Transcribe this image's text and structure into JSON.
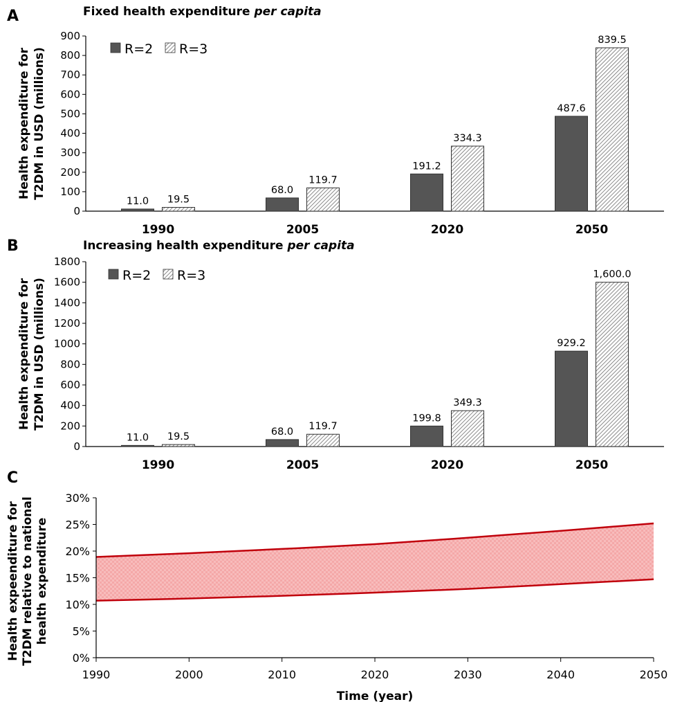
{
  "panels": {
    "A": {
      "letter": "A",
      "title_plain": "Fixed health expenditure ",
      "title_italic": "per capita"
    },
    "B": {
      "letter": "B",
      "title_plain": "Increasing health expenditure ",
      "title_italic": "per capita"
    },
    "C": {
      "letter": "C"
    }
  },
  "colors": {
    "r2_bar": "#555555",
    "r3_bar_hatch": "#6e6e6e",
    "band_fill": "#f7b7b7",
    "band_line": "#c0000b"
  },
  "chart_data": [
    {
      "type": "bar",
      "title": "Fixed health expenditure per capita",
      "ylabel": "Health expenditure for T2DM in USD (millions)",
      "xlabel": "",
      "categories": [
        "1990",
        "2005",
        "2020",
        "2050"
      ],
      "series": [
        {
          "name": "R=2",
          "values": [
            11.0,
            68.0,
            191.2,
            487.6
          ],
          "labels": [
            "11.0",
            "68.0",
            "191.2",
            "487.6"
          ]
        },
        {
          "name": "R=3",
          "values": [
            19.5,
            119.7,
            334.3,
            839.5
          ],
          "labels": [
            "19.5",
            "119.7",
            "334.3",
            "839.5"
          ]
        }
      ],
      "ylim": [
        0,
        900
      ],
      "yticks": [
        0,
        100,
        200,
        300,
        400,
        500,
        600,
        700,
        800,
        900
      ],
      "legend_position": "top-left",
      "grid": false
    },
    {
      "type": "bar",
      "title": "Increasing health expenditure per capita",
      "ylabel": "Health expenditure for T2DM in USD (millions)",
      "xlabel": "",
      "categories": [
        "1990",
        "2005",
        "2020",
        "2050"
      ],
      "series": [
        {
          "name": "R=2",
          "values": [
            11.0,
            68.0,
            199.8,
            929.2
          ],
          "labels": [
            "11.0",
            "68.0",
            "199.8",
            "929.2"
          ]
        },
        {
          "name": "R=3",
          "values": [
            19.5,
            119.7,
            349.3,
            1600.0
          ],
          "labels": [
            "19.5",
            "119.7",
            "349.3",
            "1,600.0"
          ]
        }
      ],
      "ylim": [
        0,
        1800
      ],
      "yticks": [
        0,
        200,
        400,
        600,
        800,
        1000,
        1200,
        1400,
        1600,
        1800
      ],
      "legend_position": "top-left",
      "grid": false
    },
    {
      "type": "area",
      "title": "",
      "ylabel": "Health expeenditure for T2DM relative to national health expenditure",
      "xlabel": "Time (year)",
      "x": [
        1990,
        2000,
        2010,
        2020,
        2030,
        2040,
        2050
      ],
      "series": [
        {
          "role": "upper",
          "values": [
            18.9,
            19.6,
            20.4,
            21.3,
            22.5,
            23.8,
            25.2
          ]
        },
        {
          "role": "lower",
          "values": [
            10.7,
            11.1,
            11.6,
            12.2,
            12.9,
            13.8,
            14.7
          ]
        }
      ],
      "xlim": [
        1990,
        2050
      ],
      "xticks": [
        1990,
        2000,
        2010,
        2020,
        2030,
        2040,
        2050
      ],
      "ylim": [
        0,
        30
      ],
      "yticks": [
        0,
        5,
        10,
        15,
        20,
        25,
        30
      ],
      "ytick_suffix": "%",
      "grid": false
    }
  ]
}
